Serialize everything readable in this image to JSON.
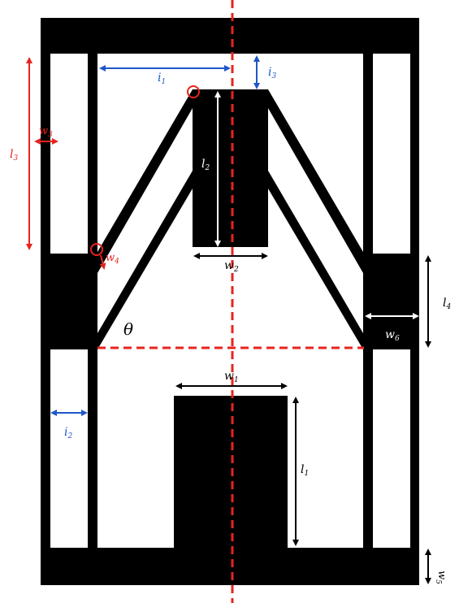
{
  "colors": {
    "metal": "#000000",
    "background": "#ffffff",
    "axis": "#e8231e",
    "dim_blue": "#1f57c9",
    "dim_red": "#e8231e",
    "dim_white": "#ffffff",
    "dim_black": "#000000"
  },
  "labels": {
    "i1": {
      "base": "i",
      "sub": "1"
    },
    "i2": {
      "base": "i",
      "sub": "2"
    },
    "i3": {
      "base": "i",
      "sub": "3"
    },
    "l1": {
      "base": "l",
      "sub": "1"
    },
    "l2": {
      "base": "l",
      "sub": "2"
    },
    "l3": {
      "base": "l",
      "sub": "3"
    },
    "l4": {
      "base": "l",
      "sub": "4"
    },
    "w1": {
      "base": "w",
      "sub": "1"
    },
    "w2": {
      "base": "w",
      "sub": "2"
    },
    "w3": {
      "base": "w",
      "sub": "3"
    },
    "w4": {
      "base": "w",
      "sub": "4"
    },
    "w5": {
      "base": "w",
      "sub": "5"
    },
    "w6": {
      "base": "w",
      "sub": "6"
    },
    "theta": {
      "base": "θ",
      "sub": ""
    }
  }
}
